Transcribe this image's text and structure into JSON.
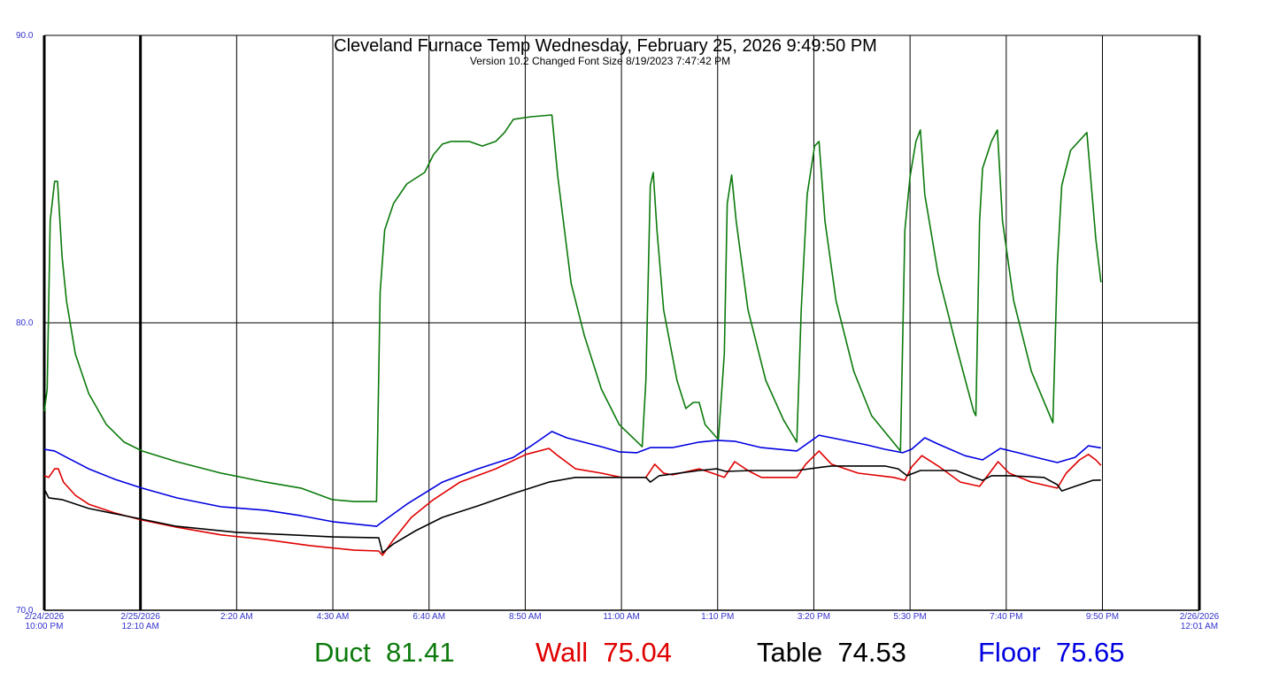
{
  "chart_data": {
    "type": "line",
    "title": "Cleveland Furnace Temp   Wednesday, February 25, 2026 9:49:50 PM",
    "subtitle": "Version 10.2 Changed Font Size  8/19/2023 7:47:42 PM",
    "x_unit": "minutes since 2/24/2026 10:00 PM",
    "xlim": [
      0,
      1561
    ],
    "ylim": [
      70,
      90
    ],
    "grid": true,
    "y_ticks": [
      {
        "value": 90,
        "label": "90.0"
      },
      {
        "value": 80,
        "label": "80.0"
      },
      {
        "value": 70,
        "label": "70.0"
      }
    ],
    "x_ticks": [
      {
        "value": 0,
        "line1": "2/24/2026",
        "line2": "10:00 PM",
        "bold": true
      },
      {
        "value": 130,
        "line1": "2/25/2026",
        "line2": "12:10 AM",
        "bold": true
      },
      {
        "value": 260,
        "line1": "2:20 AM",
        "line2": ""
      },
      {
        "value": 390,
        "line1": "4:30 AM",
        "line2": ""
      },
      {
        "value": 520,
        "line1": "6:40 AM",
        "line2": ""
      },
      {
        "value": 650,
        "line1": "8:50 AM",
        "line2": ""
      },
      {
        "value": 780,
        "line1": "11:00 AM",
        "line2": ""
      },
      {
        "value": 910,
        "line1": "1:10 PM",
        "line2": ""
      },
      {
        "value": 1040,
        "line1": "3:20 PM",
        "line2": ""
      },
      {
        "value": 1170,
        "line1": "5:30 PM",
        "line2": ""
      },
      {
        "value": 1300,
        "line1": "7:40 PM",
        "line2": ""
      },
      {
        "value": 1430,
        "line1": "9:50 PM",
        "line2": ""
      },
      {
        "value": 1561,
        "line1": "2/26/2026",
        "line2": "12:01 AM",
        "bold": true
      }
    ],
    "series": [
      {
        "name": "Duct",
        "current": "81.41",
        "color": "#0b7a0b",
        "x": [
          0,
          4,
          8,
          14,
          18,
          24,
          30,
          42,
          60,
          84,
          108,
          132,
          179,
          239,
          299,
          347,
          389,
          419,
          449,
          454,
          460,
          472,
          490,
          514,
          526,
          538,
          550,
          574,
          592,
          610,
          622,
          634,
          658,
          686,
          694,
          712,
          730,
          753,
          777,
          808,
          813,
          819,
          823,
          828,
          837,
          855,
          867,
          877,
          885,
          893,
          911,
          919,
          923,
          929,
          935,
          951,
          975,
          999,
          1017,
          1023,
          1031,
          1041,
          1047,
          1055,
          1070,
          1094,
          1118,
          1157,
          1163,
          1170,
          1178,
          1184,
          1190,
          1208,
          1232,
          1256,
          1259,
          1264,
          1268,
          1280,
          1288,
          1295,
          1310,
          1334,
          1363,
          1369,
          1375,
          1387,
          1409,
          1414,
          1421,
          1428
        ],
        "y": [
          76.92,
          77.69,
          83.54,
          84.92,
          84.92,
          82.31,
          80.77,
          78.92,
          77.54,
          76.46,
          75.85,
          75.54,
          75.17,
          74.77,
          74.46,
          74.25,
          73.85,
          73.78,
          73.78,
          81.08,
          83.23,
          84.15,
          84.83,
          85.23,
          85.85,
          86.22,
          86.31,
          86.31,
          86.15,
          86.31,
          86.62,
          87.08,
          87.17,
          87.23,
          85.08,
          81.38,
          79.54,
          77.69,
          76.46,
          75.69,
          78.0,
          84.77,
          85.23,
          83.23,
          80.46,
          78.0,
          77.02,
          77.23,
          77.23,
          76.46,
          75.94,
          78.92,
          84.15,
          85.14,
          83.54,
          80.46,
          78.0,
          76.62,
          75.85,
          80.46,
          84.46,
          86.15,
          86.31,
          83.54,
          80.77,
          78.31,
          76.77,
          75.54,
          83.23,
          85.08,
          86.31,
          86.71,
          84.46,
          81.69,
          79.23,
          76.92,
          76.77,
          83.54,
          85.38,
          86.31,
          86.71,
          83.54,
          80.77,
          78.31,
          76.52,
          82.0,
          84.77,
          86.0,
          86.62,
          85.08,
          82.92,
          81.41
        ]
      },
      {
        "name": "Wall",
        "current": "75.04",
        "color": "#e00000",
        "x": [
          0,
          6,
          14,
          19,
          26,
          42,
          60,
          96,
          132,
          179,
          239,
          299,
          359,
          419,
          452,
          457,
          472,
          496,
          526,
          562,
          610,
          651,
          682,
          694,
          718,
          753,
          780,
          813,
          825,
          837,
          849,
          885,
          903,
          919,
          933,
          951,
          969,
          1017,
          1029,
          1047,
          1064,
          1100,
          1148,
          1163,
          1172,
          1186,
          1208,
          1238,
          1264,
          1289,
          1304,
          1334,
          1369,
          1381,
          1399,
          1411,
          1421,
          1428
        ],
        "y": [
          74.68,
          74.62,
          74.92,
          74.92,
          74.46,
          74.0,
          73.69,
          73.38,
          73.14,
          72.89,
          72.62,
          72.46,
          72.25,
          72.09,
          72.06,
          71.91,
          72.46,
          73.23,
          73.85,
          74.46,
          74.92,
          75.42,
          75.63,
          75.38,
          74.92,
          74.77,
          74.62,
          74.62,
          75.08,
          74.77,
          74.71,
          74.92,
          74.77,
          74.62,
          75.17,
          74.86,
          74.62,
          74.62,
          75.08,
          75.54,
          75.08,
          74.77,
          74.62,
          74.52,
          74.98,
          75.38,
          75.02,
          74.46,
          74.31,
          75.17,
          74.77,
          74.46,
          74.25,
          74.77,
          75.23,
          75.42,
          75.23,
          75.04
        ]
      },
      {
        "name": "Table",
        "current": "74.53",
        "color": "#000000",
        "x": [
          0,
          6,
          24,
          60,
          120,
          179,
          260,
          335,
          390,
          452,
          457,
          472,
          502,
          538,
          586,
          634,
          682,
          718,
          777,
          813,
          819,
          831,
          885,
          909,
          921,
          957,
          1017,
          1052,
          1064,
          1136,
          1154,
          1166,
          1184,
          1232,
          1256,
          1268,
          1280,
          1304,
          1351,
          1369,
          1375,
          1393,
          1417,
          1428
        ],
        "y": [
          74.22,
          73.91,
          73.85,
          73.54,
          73.23,
          72.92,
          72.71,
          72.62,
          72.55,
          72.52,
          72.0,
          72.31,
          72.77,
          73.23,
          73.63,
          74.06,
          74.46,
          74.62,
          74.62,
          74.62,
          74.46,
          74.68,
          74.86,
          74.92,
          74.83,
          74.86,
          74.86,
          74.98,
          75.02,
          75.02,
          74.92,
          74.68,
          74.86,
          74.86,
          74.62,
          74.52,
          74.68,
          74.68,
          74.62,
          74.37,
          74.15,
          74.31,
          74.52,
          74.53
        ]
      },
      {
        "name": "Floor",
        "current": "75.65",
        "color": "#0000e0",
        "x": [
          0,
          14,
          30,
          60,
          96,
          132,
          179,
          239,
          299,
          347,
          390,
          449,
          454,
          490,
          538,
          586,
          634,
          658,
          686,
          706,
          753,
          777,
          801,
          819,
          849,
          885,
          909,
          933,
          969,
          1017,
          1047,
          1076,
          1112,
          1136,
          1160,
          1172,
          1190,
          1208,
          1244,
          1268,
          1292,
          1316,
          1345,
          1369,
          1393,
          1411,
          1428
        ],
        "y": [
          75.6,
          75.54,
          75.32,
          74.92,
          74.55,
          74.25,
          73.91,
          73.6,
          73.48,
          73.29,
          73.08,
          72.92,
          73.02,
          73.69,
          74.46,
          74.92,
          75.32,
          75.72,
          76.22,
          76.0,
          75.69,
          75.51,
          75.48,
          75.66,
          75.66,
          75.85,
          75.91,
          75.88,
          75.66,
          75.54,
          76.09,
          75.94,
          75.75,
          75.6,
          75.48,
          75.6,
          76.0,
          75.78,
          75.38,
          75.23,
          75.63,
          75.48,
          75.29,
          75.14,
          75.32,
          75.72,
          75.65
        ]
      }
    ]
  }
}
